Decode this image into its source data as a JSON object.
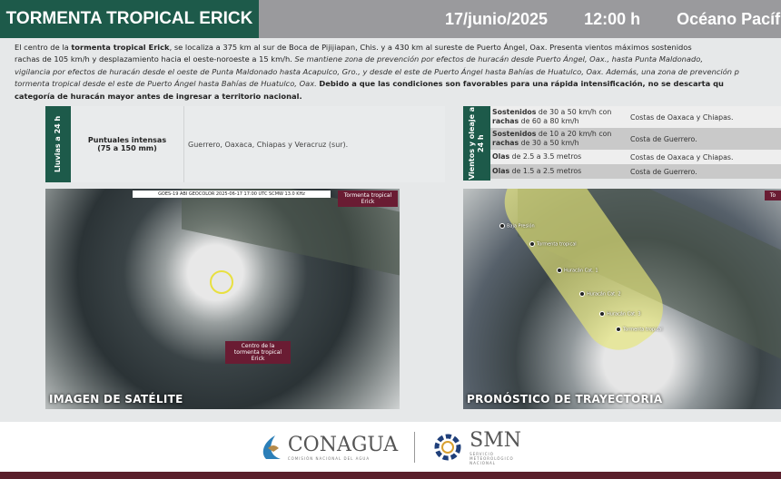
{
  "header": {
    "title": "TORMENTA TROPICAL ERICK",
    "date": "17/junio/2025",
    "time": "12:00 h",
    "ocean": "Océano Pacífico"
  },
  "intro": {
    "p1": "El centro de la ",
    "p1b": "tormenta tropical Erick",
    "p2": ", se localiza a 375 km al sur de Boca de Pijijiapan, Chis. y a 430 km al sureste de Puerto Ángel, Oax. Presenta vientos máximos sostenidos",
    "line2a": "rachas de 105 km/h y desplazamiento hacia el oeste-noroeste a 15 km/h. ",
    "line2i": "Se mantiene zona de prevención por efectos de huracán desde Puerto Ángel, Oax., hasta Punta Maldonado,",
    "line3i": "vigilancia por efectos de huracán desde el oeste de Punta Maldonado hasta Acapulco, Gro., y desde el este de Puerto Ángel hasta Bahías de Huatulco, Oax. Además, una zona de prevención p",
    "line4i": "tormenta tropical desde el este de Puerto Ángel hasta Bahías de Huatulco, Oax. ",
    "line4b": "Debido a que las condiciones son favorables para una rápida intensificación, no se descarta qu",
    "line5b": "categoría de huracán mayor antes de ingresar a territorio nacional."
  },
  "rain": {
    "label": "Lluvias a 24 h",
    "intensity": "Puntuales intensas",
    "range": "(75 a 150 mm)",
    "regions": "Guerrero, Oaxaca, Chiapas y Veracruz (sur)."
  },
  "wind": {
    "label": "Vientos y oleaje a 24 h",
    "rows": [
      {
        "b1": "Sostenidos",
        "t1": " de 30 a 50 km/h con ",
        "b2": "rachas",
        "t2": " de 60 a 80 km/h",
        "region": "Costas de Oaxaca y Chiapas."
      },
      {
        "b1": "Sostenidos",
        "t1": " de 10 a 20 km/h con ",
        "b2": "rachas",
        "t2": " de 30 a 50 km/h",
        "region": "Costa de Guerrero."
      },
      {
        "b1": "Olas",
        "t1": " de 2.5 a 3.5 metros",
        "b2": "",
        "t2": "",
        "region": "Costas de Oaxaca y Chiapas."
      },
      {
        "b1": "Olas",
        "t1": " de 1.5 a 2.5 metros",
        "b2": "",
        "t2": "",
        "region": "Costa de Guerrero."
      }
    ]
  },
  "satellite": {
    "caption": "IMAGEN DE SATÉLITE",
    "info": "GOES-19 ABI GEOCOLOR 2025-06-17 17:00 UTC SCMW 13.0 KHz",
    "tag": "Tormenta tropical Erick",
    "center_label": "Centro de la tormenta tropical Erick"
  },
  "forecast": {
    "caption": "PRONÓSTICO DE TRAYECTORIA",
    "tag": "To",
    "points": [
      "Baja Presión",
      "Tormenta tropical",
      "Huracán Cat. 1",
      "Huracán Cat. 2",
      "Huracán Cat. 3",
      "Tormenta tropical"
    ]
  },
  "footer": {
    "conagua": "CONAGUA",
    "conagua_sub": "COMISIÓN NACIONAL DEL AGUA",
    "smn": "SMN",
    "smn_sub": "SERVICIO METEOROLÓGICO NACIONAL"
  },
  "colors": {
    "green": "#1d5a4a",
    "gray": "#9a9a9d",
    "maroon": "#6a1c33"
  }
}
